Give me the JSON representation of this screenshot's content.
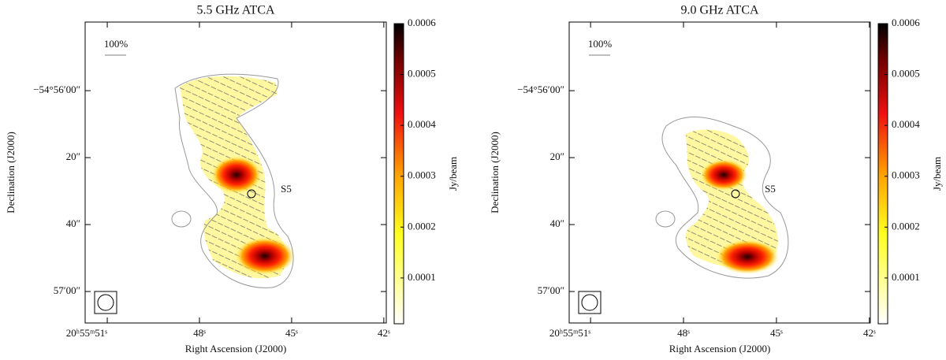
{
  "chart_data": [
    {
      "type": "image",
      "title": "5.5 GHz ATCA",
      "xlabel": "Right Ascension (J2000)",
      "ylabel": "Declination (J2000)",
      "xlim": [
        51.72,
        41.92
      ],
      "xticks": [
        {
          "value": 51,
          "label": "20ʰ55ᵐ51ˢ"
        },
        {
          "value": 48,
          "label": "48ˢ"
        },
        {
          "value": 45,
          "label": "45ˢ"
        },
        {
          "value": 42,
          "label": "42ˢ"
        }
      ],
      "ylim": [
        69.4,
        -20.5
      ],
      "yticks": [
        {
          "value": 0,
          "label": "−54°56′00″"
        },
        {
          "value": 20,
          "label": "20″"
        },
        {
          "value": 40,
          "label": "40″"
        },
        {
          "value": 60,
          "label": "57′00″"
        }
      ],
      "colorbar": {
        "label": "Jy/beam",
        "clim": [
          1e-05,
          0.0006
        ],
        "ticks": [
          0.0001,
          0.0002,
          0.0003,
          0.0004,
          0.0005,
          0.0006
        ]
      },
      "annotations": [
        "S5",
        "100%"
      ]
    },
    {
      "type": "image",
      "title": "9.0 GHz ATCA",
      "xlabel": "Right Ascension (J2000)",
      "ylabel": "Declination (J2000)",
      "xlim": [
        51.69,
        41.97
      ],
      "xticks": [
        {
          "value": 51,
          "label": "20ʰ55ᵐ51ˢ"
        },
        {
          "value": 48,
          "label": "48ˢ"
        },
        {
          "value": 45,
          "label": "45ˢ"
        },
        {
          "value": 42,
          "label": "42ˢ"
        }
      ],
      "ylim": [
        69.4,
        -20.5
      ],
      "yticks": [
        {
          "value": 0,
          "label": "−54°56′00″"
        },
        {
          "value": 20,
          "label": "20″"
        },
        {
          "value": 40,
          "label": "40″"
        },
        {
          "value": 60,
          "label": "57′00″"
        }
      ],
      "colorbar": {
        "label": "Jy/beam",
        "clim": [
          1e-05,
          0.0006
        ],
        "ticks": [
          0.0001,
          0.0002,
          0.0003,
          0.0004,
          0.0005,
          0.0006
        ]
      },
      "annotations": [
        "S5",
        "100%"
      ]
    }
  ]
}
